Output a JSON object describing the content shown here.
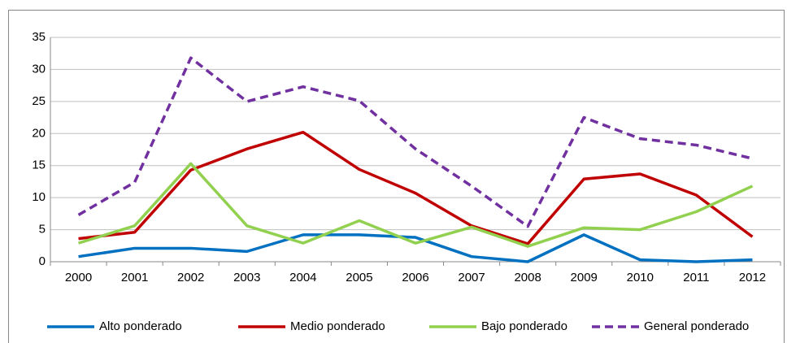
{
  "chart_data": {
    "type": "line",
    "categories": [
      "2000",
      "2001",
      "2002",
      "2003",
      "2004",
      "2005",
      "2006",
      "2007",
      "2008",
      "2009",
      "2010",
      "2011",
      "2012"
    ],
    "series": [
      {
        "name": "Alto ponderado",
        "color": "#0070c0",
        "dash": false,
        "values": [
          0.8,
          2.1,
          2.1,
          1.6,
          4.2,
          4.2,
          3.8,
          0.8,
          0,
          4.2,
          0.3,
          0,
          0.3
        ]
      },
      {
        "name": "Medio ponderado",
        "color": "#c00000",
        "dash": false,
        "values": [
          3.6,
          4.6,
          14.3,
          17.6,
          20.2,
          14.4,
          10.7,
          5.6,
          2.8,
          12.9,
          13.7,
          10.4,
          3.9
        ]
      },
      {
        "name": "Bajo ponderado",
        "color": "#92d050",
        "dash": false,
        "values": [
          2.9,
          5.6,
          15.3,
          5.6,
          2.9,
          6.4,
          2.9,
          5.4,
          2.4,
          5.3,
          5.0,
          7.8,
          11.8
        ]
      },
      {
        "name": "General ponderado",
        "color": "#7030a0",
        "dash": true,
        "values": [
          7.3,
          12.4,
          31.8,
          25.0,
          27.3,
          25.1,
          17.6,
          11.8,
          5.5,
          22.5,
          19.2,
          18.2,
          16.1
        ]
      }
    ],
    "ylim": [
      0,
      35
    ],
    "yticks": [
      0,
      5,
      10,
      15,
      20,
      25,
      30,
      35
    ],
    "grid": true,
    "legend": "bottom"
  }
}
